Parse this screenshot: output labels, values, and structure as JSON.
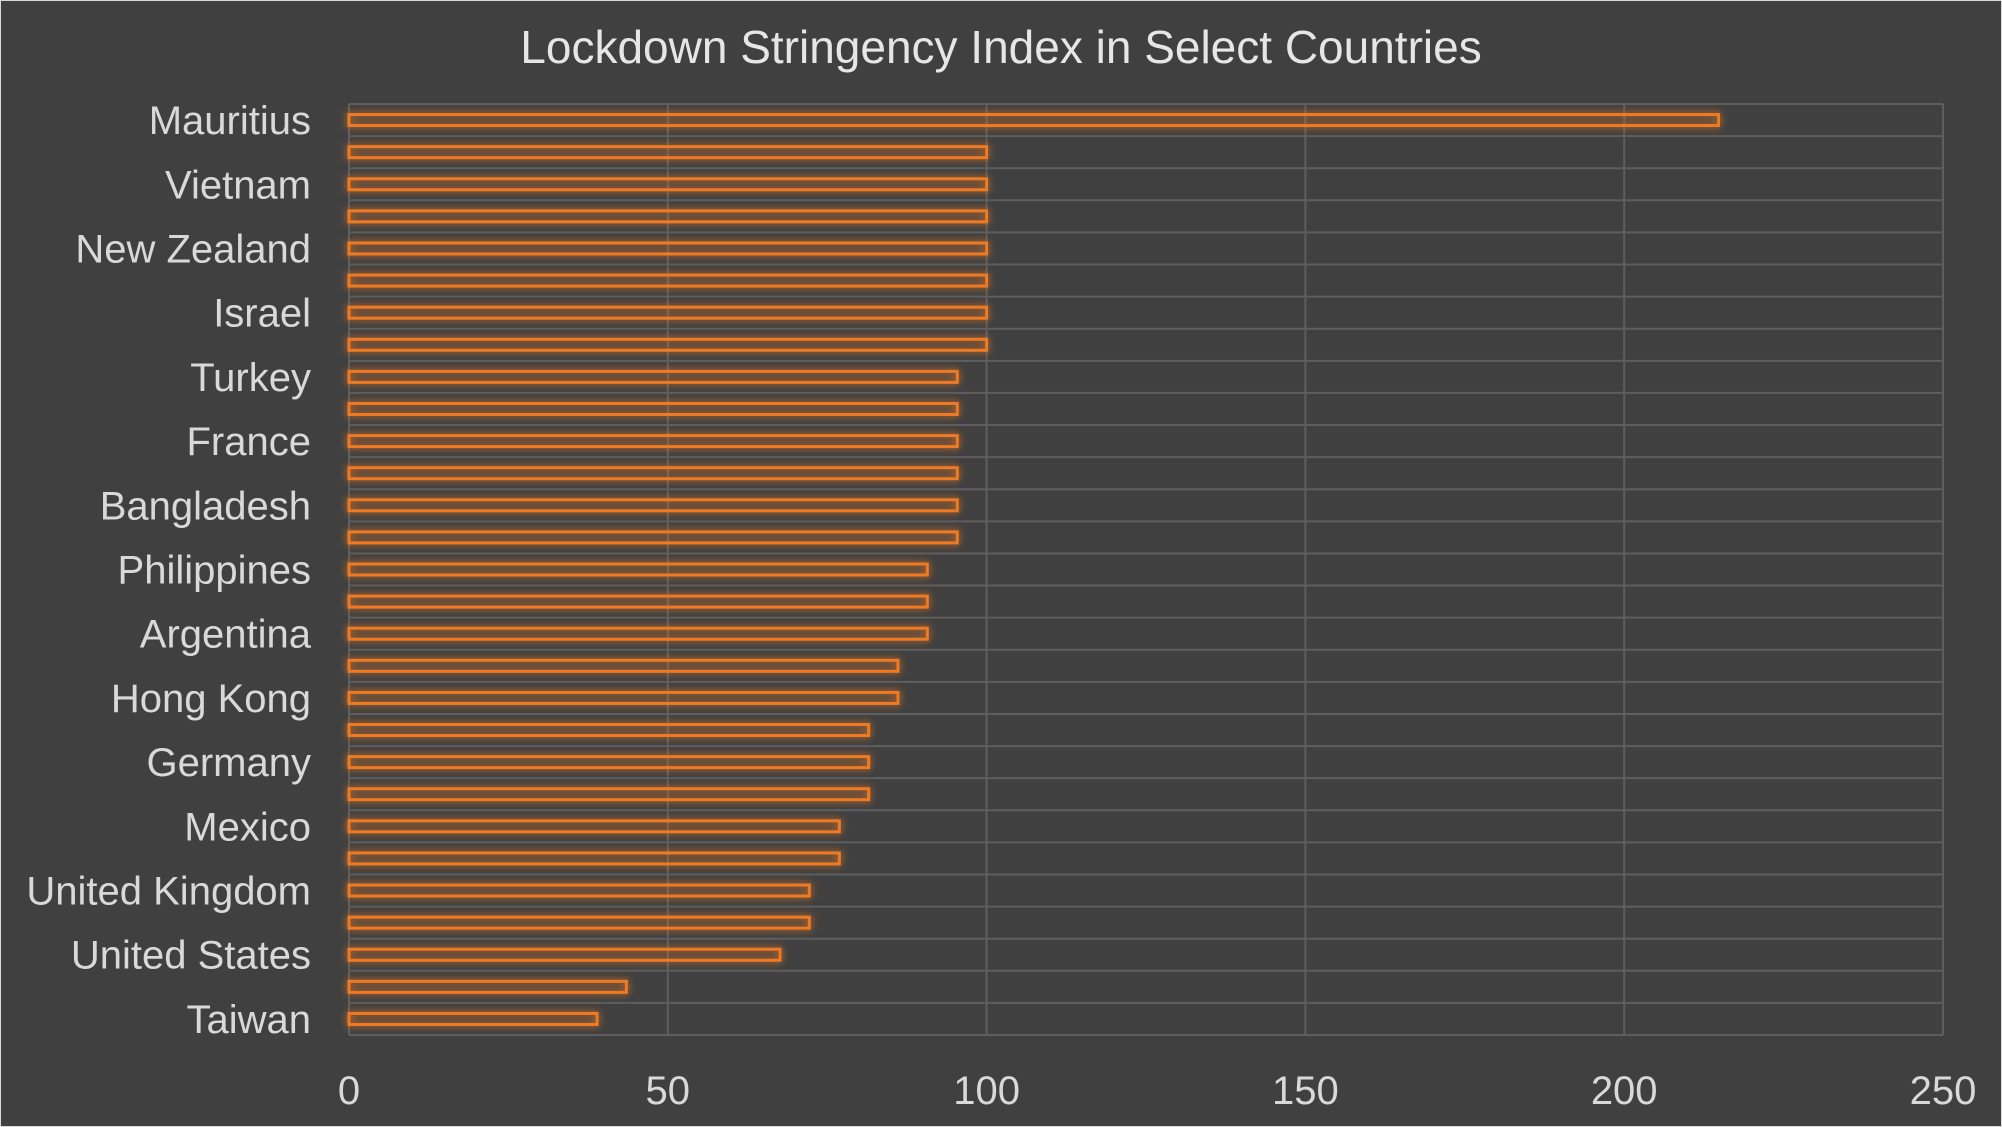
{
  "chart_data": {
    "type": "bar",
    "orientation": "horizontal",
    "title": "Lockdown Stringency Index in Select Countries",
    "xlabel": "",
    "ylabel": "",
    "xlim": [
      0,
      250
    ],
    "x_ticks": [
      "0",
      "50",
      "100",
      "150",
      "200",
      "250"
    ],
    "grid": true,
    "legend": "none",
    "colors": {
      "background": "#404040",
      "bar_outline": "#f07a24",
      "bar_glow": "#c55a11",
      "text": "#d9d9d9",
      "grid": "#5e5e5e"
    },
    "category_labels_shown": [
      "Mauritius",
      "Vietnam",
      "New Zealand",
      "Israel",
      "Turkey",
      "France",
      "Bangladesh",
      "Philippines",
      "Argentina",
      "Hong Kong",
      "Germany",
      "Mexico",
      "United Kingdom",
      "United States",
      "Taiwan"
    ],
    "categories": [
      "Mauritius",
      "",
      "Vietnam",
      "",
      "New Zealand",
      "",
      "Israel",
      "",
      "Turkey",
      "",
      "France",
      "",
      "Bangladesh",
      "",
      "Philippines",
      "",
      "Argentina",
      "",
      "Hong Kong",
      "",
      "Germany",
      "",
      "Mexico",
      "",
      "United Kingdom",
      "",
      "United States",
      "",
      "Taiwan"
    ],
    "values": [
      214.8,
      100,
      100,
      100,
      100,
      100,
      100,
      100,
      95.4,
      95.4,
      95.4,
      95.4,
      95.4,
      95.4,
      90.7,
      90.7,
      90.7,
      86.1,
      86.1,
      81.5,
      81.5,
      81.5,
      76.9,
      76.9,
      72.2,
      72.2,
      67.6,
      43.5,
      38.9
    ]
  }
}
